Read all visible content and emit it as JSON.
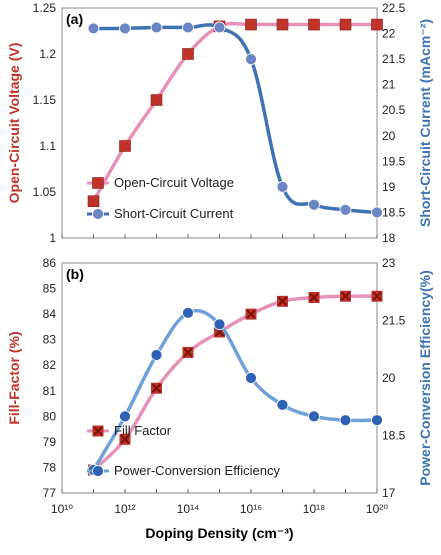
{
  "chart_data": [
    {
      "type": "line",
      "panel_label": "(a)",
      "x": [
        "1e11",
        "1e12",
        "3e12",
        "1e13",
        "1e14",
        "3e14",
        "1e15",
        "1e16",
        "1e17",
        "1e18",
        "1e19",
        "1e20"
      ],
      "x_values": [
        100000000000.0,
        1000000000000.0,
        3000000000000.0,
        10000000000000.0,
        100000000000000.0,
        300000000000000.0,
        1000000000000000.0,
        1e+16,
        1e+17,
        1e+18,
        1e+19,
        1e+20
      ],
      "xlim": [
        10000000000.0,
        1e+20
      ],
      "x_scale": "log",
      "ylabel_left": "Open-Circuit Voltage (V)",
      "ylabel_right": "Short-Circuit Current (mAcm⁻²)",
      "ylim_left": [
        1,
        1.25
      ],
      "ylim_right": [
        18,
        22.5
      ],
      "yticks_left": [
        "1",
        "1.05",
        "1.1",
        "1.15",
        "1.2",
        "1.25"
      ],
      "yticks_right": [
        "18",
        "18.5",
        "19",
        "19.5",
        "20",
        "20.5",
        "21",
        "21.5",
        "22",
        "22.5"
      ],
      "legend_position": "bottom-left",
      "grid": false,
      "series": [
        {
          "name": "Open-Circuit Voltage",
          "axis": "left",
          "marker": "square",
          "color": "#c0332b",
          "line_color": "#e891b8",
          "x": [
            100000000000.0,
            1000000000000.0,
            10000000000000.0,
            100000000000000.0,
            1000000000000000.0,
            1e+16,
            1e+17,
            1e+18,
            1e+19,
            1e+20
          ],
          "values": [
            1.04,
            1.1,
            1.15,
            1.2,
            1.23,
            1.232,
            1.232,
            1.232,
            1.232,
            1.232
          ]
        },
        {
          "name": "Short-Circuit Current",
          "axis": "right",
          "marker": "circle",
          "color": "#6b86c4",
          "line_color": "#3f72b3",
          "x": [
            100000000000.0,
            1000000000000.0,
            10000000000000.0,
            100000000000000.0,
            1000000000000000.0,
            1e+16,
            1e+17,
            1e+18,
            1e+19,
            1e+20
          ],
          "values": [
            22.1,
            22.1,
            22.12,
            22.12,
            22.12,
            21.5,
            19.0,
            18.65,
            18.55,
            18.5
          ]
        }
      ]
    },
    {
      "type": "line",
      "panel_label": "(b)",
      "xlabel": "Doping Density (cm⁻³)",
      "xlim": [
        10000000000.0,
        1e+20
      ],
      "x_scale": "log",
      "xticks": [
        "10¹⁰",
        "10¹²",
        "10¹⁴",
        "10¹⁶",
        "10¹⁸",
        "10²⁰"
      ],
      "ylabel_left": "Fill-Factor (%)",
      "ylabel_right": "Power-Conversion Efficiency(%)",
      "ylim_left": [
        77,
        86
      ],
      "ylim_right": [
        17,
        23
      ],
      "yticks_left": [
        "77",
        "78",
        "79",
        "80",
        "81",
        "82",
        "83",
        "84",
        "85",
        "86"
      ],
      "yticks_right": [
        "17",
        "18.5",
        "20",
        "21.5",
        "23"
      ],
      "legend_position": "bottom-left",
      "grid": false,
      "series": [
        {
          "name": "Fill Factor",
          "axis": "left",
          "marker": "x-square",
          "color": "#c0332b",
          "line_color": "#e891b8",
          "x": [
            100000000000.0,
            1000000000000.0,
            10000000000000.0,
            100000000000000.0,
            1000000000000000.0,
            1e+16,
            1e+17,
            1e+18,
            1e+19,
            1e+20
          ],
          "values": [
            77.9,
            79.1,
            81.1,
            82.5,
            83.3,
            84.0,
            84.5,
            84.65,
            84.7,
            84.7
          ]
        },
        {
          "name": "Power-Conversion Efficiency",
          "axis": "right",
          "marker": "circle",
          "color": "#2f62b4",
          "line_color": "#6fa0d8",
          "x": [
            100000000000.0,
            1000000000000.0,
            10000000000000.0,
            100000000000000.0,
            1000000000000000.0,
            1e+16,
            1e+17,
            1e+18,
            1e+19,
            1e+20
          ],
          "values": [
            17.6,
            19.0,
            20.6,
            21.7,
            21.4,
            20.0,
            19.3,
            19.0,
            18.9,
            18.9
          ]
        }
      ]
    }
  ],
  "colors": {
    "voc": "#c0332b",
    "jsc": "#6b86c4",
    "ff": "#c0332b",
    "pce": "#2f62b4",
    "left_axis_title": "#c0332b",
    "right_axis_title": "#3f72b3"
  }
}
